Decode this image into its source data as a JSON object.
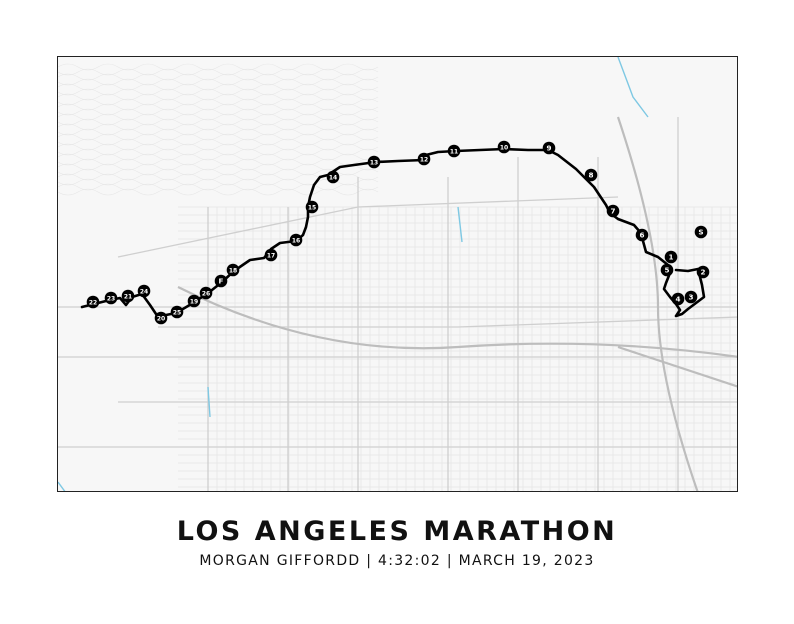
{
  "poster": {
    "title": "LOS ANGELES MARATHON",
    "subtitle": "MORGAN GIFFORDD | 4:32:02 | MARCH 19, 2023"
  },
  "map": {
    "colors": {
      "background": "#f7f7f7",
      "minor_street": "#e4e4e4",
      "major_street": "#cfcfcf",
      "freeway": "#bdbdbd",
      "water": "#7ec8e3",
      "route": "#000000",
      "marker_fill": "#000000",
      "marker_text": "#ffffff"
    },
    "route_markers": [
      "S",
      "1",
      "2",
      "3",
      "4",
      "5",
      "6",
      "7",
      "8",
      "9",
      "10",
      "11",
      "12",
      "13",
      "14",
      "15",
      "16",
      "17",
      "18",
      "F",
      "19",
      "20",
      "21",
      "22",
      "23",
      "24",
      "25",
      "26"
    ]
  }
}
